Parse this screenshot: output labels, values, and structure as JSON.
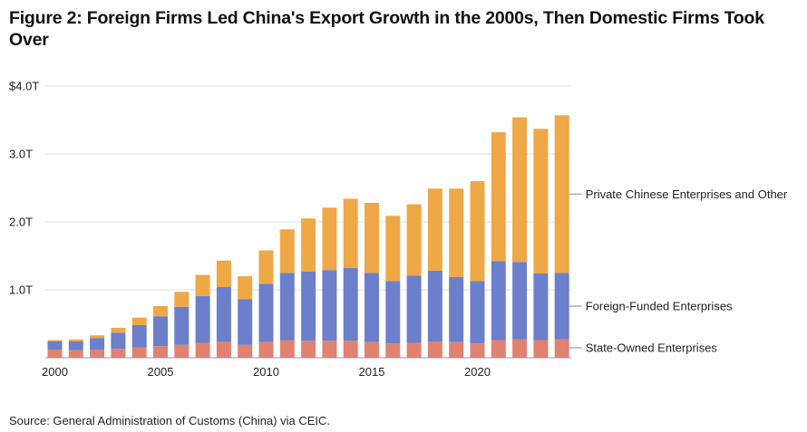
{
  "title_prefix": "Figure 2:",
  "title_rest": " Foreign Firms Led China's Export Growth in the 2000s, Then Domestic Firms Took Over",
  "source": "Source: General Administration of Customs (China) via CEIC.",
  "chart_data": {
    "type": "bar",
    "stacked": true,
    "x": [
      2000,
      2001,
      2002,
      2003,
      2004,
      2005,
      2006,
      2007,
      2008,
      2009,
      2010,
      2011,
      2012,
      2013,
      2014,
      2015,
      2016,
      2017,
      2018,
      2019,
      2020,
      2021,
      2022,
      2023,
      2024
    ],
    "x_ticks": [
      2000,
      2005,
      2010,
      2015,
      2020
    ],
    "x_tick_labels": [
      "2000",
      "2005",
      "2010",
      "2015",
      "2020"
    ],
    "y_ticks": [
      1,
      2,
      3,
      4
    ],
    "y_tick_labels": [
      "1.0T",
      "2.0T",
      "3.0T",
      "$4.0T"
    ],
    "ylim": [
      0,
      4.0
    ],
    "grid": true,
    "legend_placement": "right, labels beside bars",
    "series": [
      {
        "name": "State-Owned Enterprises",
        "color": "#e0826f",
        "values": [
          0.12,
          0.11,
          0.12,
          0.13,
          0.15,
          0.17,
          0.19,
          0.22,
          0.24,
          0.19,
          0.23,
          0.26,
          0.25,
          0.25,
          0.25,
          0.23,
          0.21,
          0.22,
          0.24,
          0.23,
          0.21,
          0.26,
          0.27,
          0.26,
          0.27
        ]
      },
      {
        "name": "Foreign-Funded Enterprises",
        "color": "#6b7fca",
        "values": [
          0.12,
          0.13,
          0.17,
          0.24,
          0.33,
          0.44,
          0.56,
          0.69,
          0.8,
          0.67,
          0.86,
          0.99,
          1.02,
          1.04,
          1.07,
          1.02,
          0.92,
          0.99,
          1.04,
          0.96,
          0.92,
          1.16,
          1.14,
          0.98,
          0.98
        ]
      },
      {
        "name": "Private Chinese Enterprises and Other",
        "color": "#eea846",
        "values": [
          0.02,
          0.03,
          0.04,
          0.07,
          0.11,
          0.15,
          0.22,
          0.31,
          0.39,
          0.34,
          0.49,
          0.64,
          0.78,
          0.92,
          1.02,
          1.03,
          0.96,
          1.05,
          1.21,
          1.3,
          1.47,
          1.9,
          2.13,
          2.13,
          2.32
        ]
      }
    ]
  }
}
